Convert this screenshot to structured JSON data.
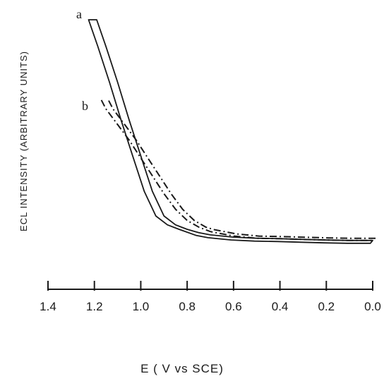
{
  "chart_data": {
    "type": "line",
    "title": "",
    "xlabel": "E  ( V vs SCE)",
    "ylabel": "ECL  INTENSITY  (ARBITRARY    UNITS)",
    "xlim": [
      1.4,
      0.0
    ],
    "x_reversed": true,
    "ylim": [
      0,
      1
    ],
    "y_ticks_shown": false,
    "grid": false,
    "x_ticks": [
      "1.4",
      "1.2",
      "1.0",
      "0.8",
      "0.6",
      "0.4",
      "0.2",
      "0.0"
    ],
    "x_tick_values": [
      1.4,
      1.2,
      1.0,
      0.8,
      0.6,
      0.4,
      0.2,
      0.0
    ],
    "series": [
      {
        "name": "a",
        "style": "solid",
        "x": [
          1.19,
          1.15,
          1.1,
          1.05,
          1.0,
          0.95,
          0.9,
          0.85,
          0.8,
          0.75,
          0.7,
          0.65,
          0.6,
          0.5,
          0.4,
          0.3,
          0.2,
          0.1,
          0.0
        ],
        "y": [
          1.0,
          0.88,
          0.72,
          0.55,
          0.39,
          0.23,
          0.12,
          0.08,
          0.06,
          0.045,
          0.035,
          0.03,
          0.025,
          0.02,
          0.018,
          0.015,
          0.012,
          0.01,
          0.01
        ]
      },
      {
        "name": "b",
        "style": "dash-dot",
        "x": [
          1.17,
          1.15,
          1.1,
          1.05,
          1.0,
          0.95,
          0.9,
          0.85,
          0.8,
          0.75,
          0.7,
          0.65,
          0.6,
          0.5,
          0.4,
          0.3,
          0.2,
          0.1,
          0.0
        ],
        "y": [
          0.64,
          0.6,
          0.53,
          0.46,
          0.38,
          0.3,
          0.22,
          0.15,
          0.1,
          0.07,
          0.05,
          0.04,
          0.03,
          0.02,
          0.018,
          0.015,
          0.012,
          0.01,
          0.01
        ]
      }
    ]
  }
}
